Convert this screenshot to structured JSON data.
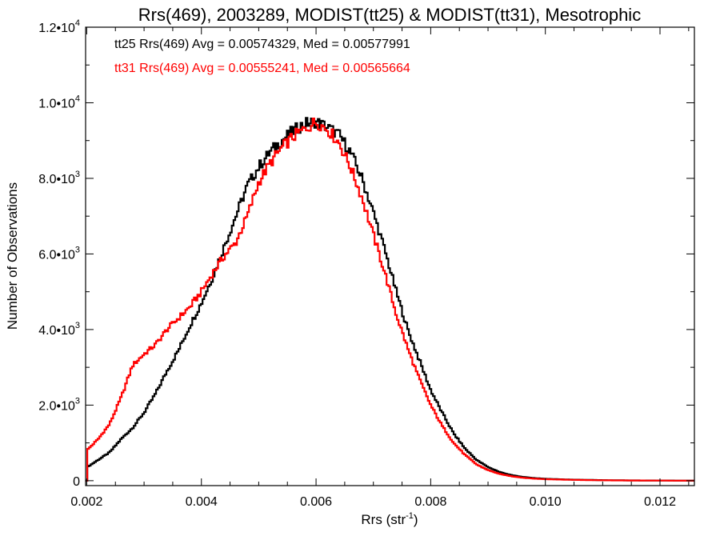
{
  "chart_data": {
    "type": "histogram",
    "title": "Rrs(469), 2003289, MODIST(tt25) & MODIST(tt31), Mesotrophic",
    "xlabel": {
      "text": "Rrs (str",
      "sup": "-1",
      "suffix": ")"
    },
    "ylabel": "Number of Observations",
    "xlim": [
      0.00198,
      0.0126
    ],
    "ylim": [
      -130,
      12000
    ],
    "grid": false,
    "x_ticks": [
      {
        "value": 0.002,
        "label": "0.002"
      },
      {
        "value": 0.004,
        "label": "0.004"
      },
      {
        "value": 0.006,
        "label": "0.006"
      },
      {
        "value": 0.008,
        "label": "0.008"
      },
      {
        "value": 0.01,
        "label": "0.010"
      },
      {
        "value": 0.012,
        "label": "0.012"
      }
    ],
    "y_ticks": [
      {
        "value": 0,
        "mant": "0",
        "exp": ""
      },
      {
        "value": 2000,
        "mant": "2.0•10",
        "exp": "3"
      },
      {
        "value": 4000,
        "mant": "4.0•10",
        "exp": "3"
      },
      {
        "value": 6000,
        "mant": "6.0•10",
        "exp": "3"
      },
      {
        "value": 8000,
        "mant": "8.0•10",
        "exp": "3"
      },
      {
        "value": 10000,
        "mant": "1.0•10",
        "exp": "4"
      },
      {
        "value": 12000,
        "mant": "1.2•10",
        "exp": "4"
      }
    ],
    "series": [
      {
        "name": "tt25",
        "color": "#000000",
        "stats_label": "tt25 Rrs(469) Avg = 0.00574329, Med = 0.00577991",
        "points": [
          [
            0.002,
            350
          ],
          [
            0.0022,
            550
          ],
          [
            0.0024,
            750
          ],
          [
            0.0026,
            1100
          ],
          [
            0.0028,
            1400
          ],
          [
            0.003,
            1800
          ],
          [
            0.0032,
            2300
          ],
          [
            0.0034,
            2900
          ],
          [
            0.0036,
            3450
          ],
          [
            0.0038,
            4100
          ],
          [
            0.004,
            4700
          ],
          [
            0.0042,
            5400
          ],
          [
            0.0044,
            6200
          ],
          [
            0.0046,
            7000
          ],
          [
            0.0048,
            7800
          ],
          [
            0.005,
            8300
          ],
          [
            0.0052,
            8700
          ],
          [
            0.0054,
            9000
          ],
          [
            0.0056,
            9250
          ],
          [
            0.0058,
            9450
          ],
          [
            0.006,
            9500
          ],
          [
            0.0062,
            9350
          ],
          [
            0.0064,
            9150
          ],
          [
            0.0066,
            8700
          ],
          [
            0.0068,
            8000
          ],
          [
            0.007,
            7100
          ],
          [
            0.0072,
            6100
          ],
          [
            0.0074,
            5000
          ],
          [
            0.0076,
            4000
          ],
          [
            0.0078,
            3200
          ],
          [
            0.008,
            2400
          ],
          [
            0.0082,
            1800
          ],
          [
            0.0084,
            1250
          ],
          [
            0.0086,
            850
          ],
          [
            0.0088,
            550
          ],
          [
            0.009,
            360
          ],
          [
            0.0092,
            230
          ],
          [
            0.0094,
            150
          ],
          [
            0.0096,
            100
          ],
          [
            0.0098,
            70
          ],
          [
            0.01,
            50
          ],
          [
            0.0104,
            30
          ],
          [
            0.0108,
            20
          ],
          [
            0.0112,
            10
          ],
          [
            0.0118,
            5
          ],
          [
            0.0126,
            0
          ]
        ]
      },
      {
        "name": "tt31",
        "color": "#ff0000",
        "stats_label": "tt31 Rrs(469) Avg = 0.00555241, Med = 0.00565664",
        "points": [
          [
            0.002,
            800
          ],
          [
            0.0022,
            1100
          ],
          [
            0.0024,
            1500
          ],
          [
            0.0026,
            2200
          ],
          [
            0.0028,
            3050
          ],
          [
            0.003,
            3350
          ],
          [
            0.0032,
            3600
          ],
          [
            0.0034,
            4000
          ],
          [
            0.0036,
            4300
          ],
          [
            0.0038,
            4600
          ],
          [
            0.004,
            5000
          ],
          [
            0.0042,
            5500
          ],
          [
            0.0044,
            5950
          ],
          [
            0.0046,
            6300
          ],
          [
            0.0048,
            7000
          ],
          [
            0.005,
            7900
          ],
          [
            0.0052,
            8400
          ],
          [
            0.0054,
            8800
          ],
          [
            0.0056,
            9100
          ],
          [
            0.0058,
            9300
          ],
          [
            0.006,
            9500
          ],
          [
            0.0062,
            9300
          ],
          [
            0.0064,
            8950
          ],
          [
            0.0066,
            8300
          ],
          [
            0.0068,
            7500
          ],
          [
            0.007,
            6500
          ],
          [
            0.0072,
            5500
          ],
          [
            0.0074,
            4400
          ],
          [
            0.0076,
            3500
          ],
          [
            0.0078,
            2700
          ],
          [
            0.008,
            2000
          ],
          [
            0.0082,
            1450
          ],
          [
            0.0084,
            1000
          ],
          [
            0.0086,
            680
          ],
          [
            0.0088,
            430
          ],
          [
            0.009,
            280
          ],
          [
            0.0092,
            180
          ],
          [
            0.0094,
            120
          ],
          [
            0.0096,
            80
          ],
          [
            0.0098,
            55
          ],
          [
            0.01,
            40
          ],
          [
            0.0104,
            25
          ],
          [
            0.0108,
            15
          ],
          [
            0.0112,
            8
          ],
          [
            0.0118,
            4
          ],
          [
            0.0126,
            0
          ]
        ]
      }
    ]
  }
}
